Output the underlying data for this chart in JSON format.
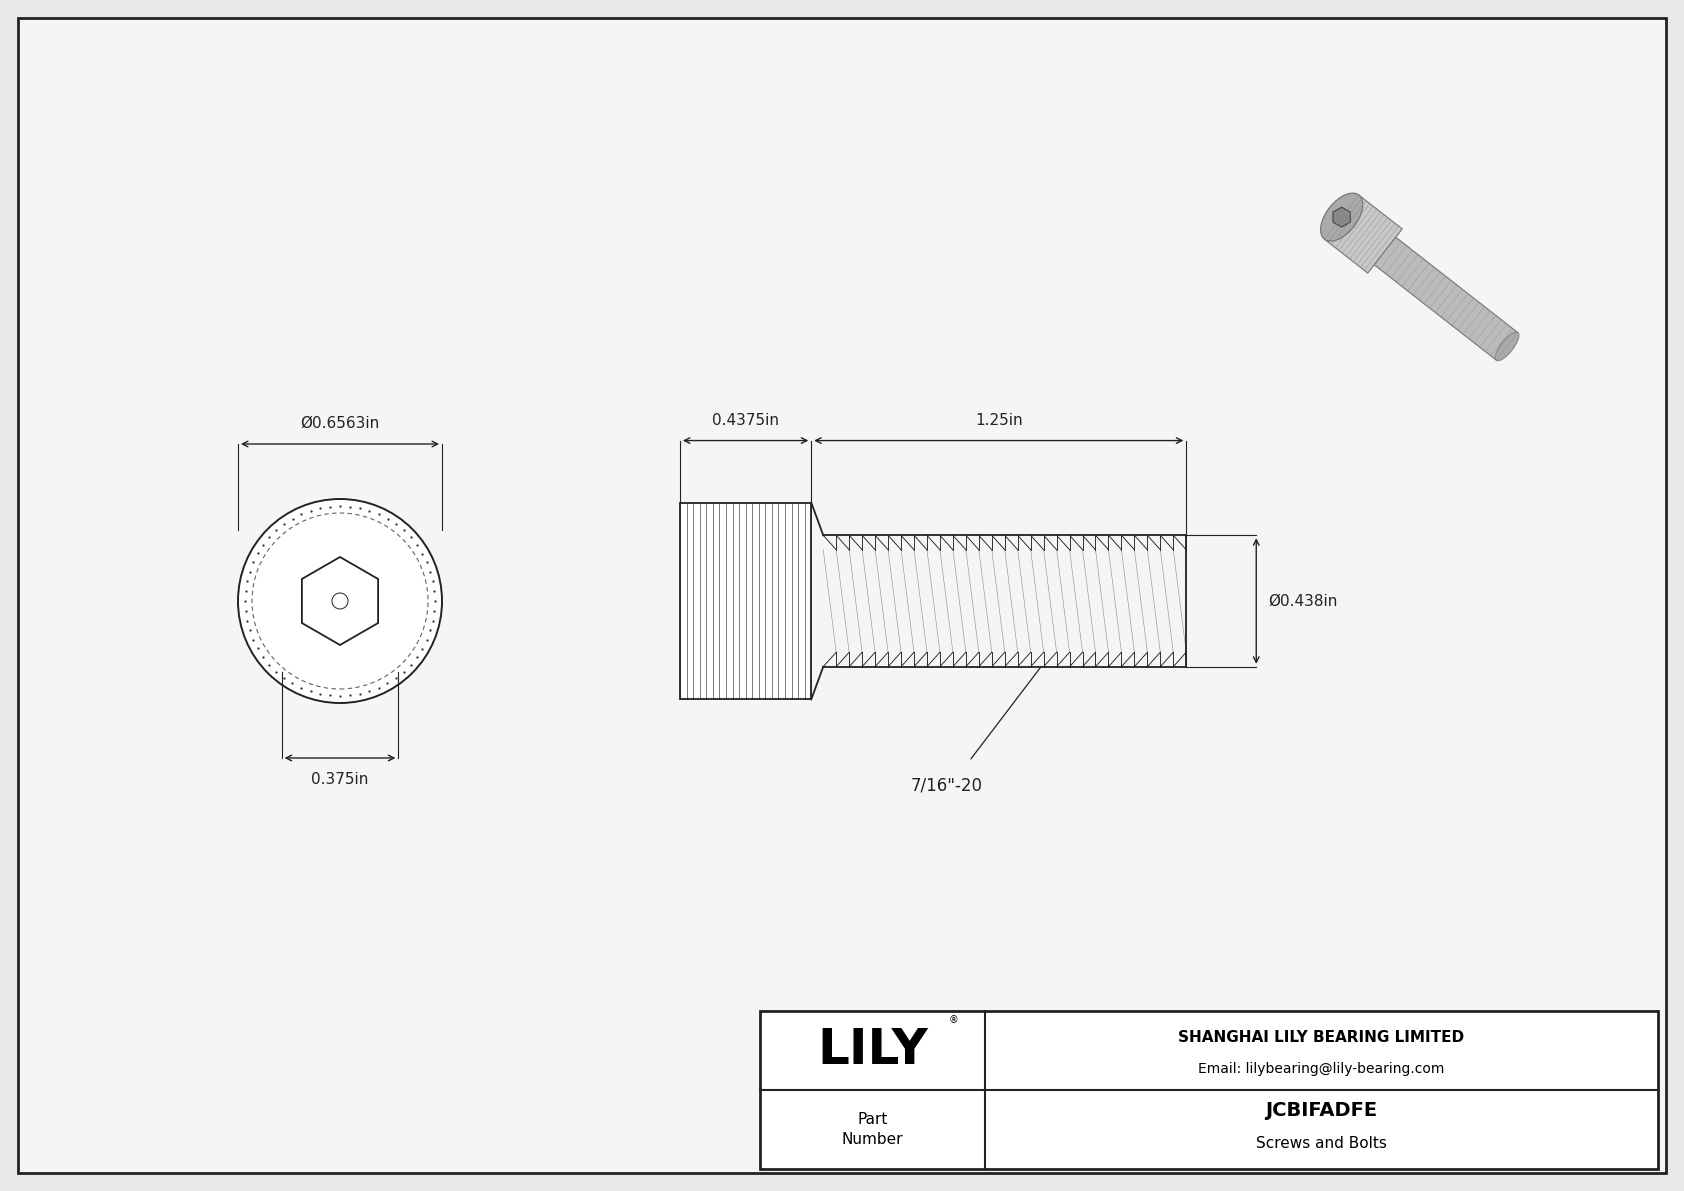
{
  "bg_color": "#e8e8e8",
  "drawing_bg": "#f5f5f5",
  "border_color": "#222222",
  "line_color": "#222222",
  "dim_color": "#222222",
  "title_text": "LILY",
  "company_name": "SHANGHAI LILY BEARING LIMITED",
  "company_email": "Email: lilybearing@lily-bearing.com",
  "part_number_label": "Part\nNumber",
  "part_number_value": "JCBIFADFE",
  "part_category": "Screws and Bolts",
  "dim_head_diameter": "Ø0.6563in",
  "dim_head_hex": "0.375in",
  "dim_head_length": "0.4375in",
  "dim_shank_length": "1.25in",
  "dim_shank_diameter": "Ø0.438in",
  "dim_thread_label": "7/16\"-20",
  "font_size_dims": 11,
  "font_size_title": 36,
  "font_size_company": 11,
  "font_size_part": 14
}
